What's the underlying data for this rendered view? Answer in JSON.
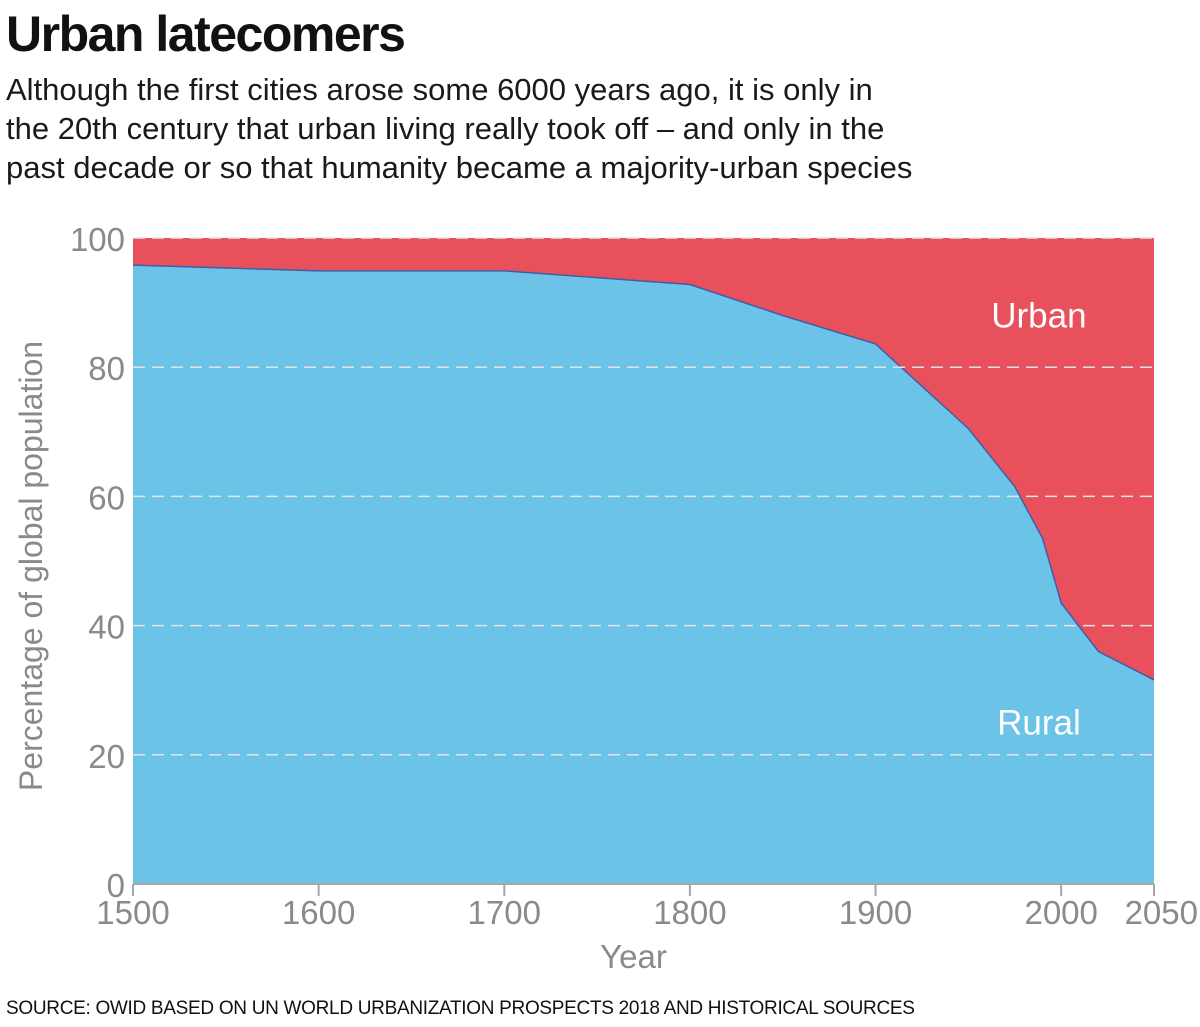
{
  "header": {
    "title": "Urban latecomers",
    "subtitle_lines": [
      "Although the first cities arose some 6000 years ago, it is only in",
      "the 20th century that urban living really took off – and only in the",
      "past decade or so that humanity became a majority-urban species"
    ]
  },
  "footer": {
    "source": "SOURCE: OWID BASED ON UN WORLD URBANIZATION PROSPECTS 2018 AND HISTORICAL SOURCES"
  },
  "colors": {
    "urban": "#E8505B",
    "rural": "#6CC3E8",
    "boundary": "#3F5EA8",
    "axis_text": "#8A8A8A",
    "grid": "#E4E4E4"
  },
  "chart_data": {
    "type": "area",
    "stacked": true,
    "title": "Urban latecomers",
    "xlabel": "Year",
    "ylabel": "Percentage of global population",
    "ylim": [
      0,
      100
    ],
    "yticks": [
      0,
      20,
      40,
      60,
      80,
      100
    ],
    "xtick_labels": [
      "1500",
      "1600",
      "1700",
      "1800",
      "1900",
      "2000",
      "2050"
    ],
    "xtick_positions": [
      0,
      1,
      2,
      3,
      4,
      5,
      5.5
    ],
    "grid": true,
    "x": [
      0,
      1,
      2,
      3,
      3.5,
      4,
      4.5,
      4.75,
      4.9,
      5,
      5.2,
      5.5
    ],
    "series": [
      {
        "name": "Rural",
        "values": [
          95.8,
          94.9,
          94.9,
          92.8,
          88.0,
          83.6,
          70.5,
          61.5,
          53.5,
          43.5,
          36.0,
          31.6
        ]
      },
      {
        "name": "Urban",
        "values": [
          4.2,
          5.1,
          5.1,
          7.2,
          12.0,
          16.4,
          29.5,
          38.5,
          46.5,
          56.5,
          64.0,
          68.4
        ]
      }
    ],
    "annotations": [
      {
        "text": "Urban",
        "series": "Urban",
        "x": 4.88,
        "y": 88
      },
      {
        "text": "Rural",
        "series": "Rural",
        "x": 4.88,
        "y": 25
      }
    ]
  }
}
